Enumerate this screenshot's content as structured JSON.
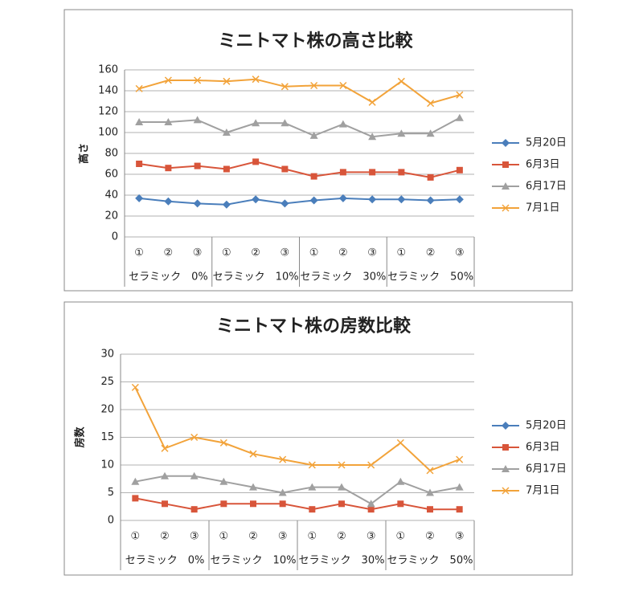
{
  "chart_data": [
    {
      "type": "line",
      "title": "ミニトマト株の高さ比較",
      "y_label": "高さ",
      "categories": [
        "①",
        "②",
        "③",
        "①",
        "②",
        "③",
        "①",
        "②",
        "③",
        "①",
        "②",
        "③"
      ],
      "category_groups": [
        "セラミック　0%",
        "セラミック　10%",
        "セラミック　30%",
        "セラミック　50%"
      ],
      "ylim": [
        0,
        160
      ],
      "yticks": [
        0,
        20,
        40,
        60,
        80,
        100,
        120,
        140,
        160
      ],
      "grid": true,
      "legend": "right",
      "series": [
        {
          "name": "5月20日",
          "color": "#4a7ebb",
          "marker": "diamond",
          "values": [
            37,
            34,
            32,
            31,
            36,
            32,
            35,
            37,
            36,
            36,
            35,
            36
          ]
        },
        {
          "name": "6月3日",
          "color": "#d8553a",
          "marker": "square",
          "values": [
            70,
            66,
            68,
            65,
            72,
            65,
            58,
            62,
            62,
            62,
            57,
            64
          ]
        },
        {
          "name": "6月17日",
          "color": "#a0a0a0",
          "marker": "triangle",
          "values": [
            110,
            110,
            112,
            100,
            109,
            109,
            97,
            108,
            96,
            99,
            99,
            114
          ]
        },
        {
          "name": "7月1日",
          "color": "#f2a33a",
          "marker": "x",
          "values": [
            142,
            150,
            150,
            149,
            151,
            144,
            145,
            145,
            129,
            149,
            128,
            136
          ]
        }
      ]
    },
    {
      "type": "line",
      "title": "ミニトマト株の房数比較",
      "y_label": "房数",
      "categories": [
        "①",
        "②",
        "③",
        "①",
        "②",
        "③",
        "①",
        "②",
        "③",
        "①",
        "②",
        "③"
      ],
      "category_groups": [
        "セラミック　0%",
        "セラミック　10%",
        "セラミック　30%",
        "セラミック　50%"
      ],
      "ylim": [
        0,
        30
      ],
      "yticks": [
        0,
        5,
        10,
        15,
        20,
        25,
        30
      ],
      "grid": true,
      "legend": "right",
      "series": [
        {
          "name": "5月20日",
          "color": "#4a7ebb",
          "marker": "diamond",
          "values": [
            null,
            null,
            null,
            null,
            null,
            null,
            null,
            null,
            null,
            null,
            null,
            null
          ]
        },
        {
          "name": "6月3日",
          "color": "#d8553a",
          "marker": "square",
          "values": [
            4,
            3,
            2,
            3,
            3,
            3,
            2,
            3,
            2,
            3,
            2,
            2
          ]
        },
        {
          "name": "6月17日",
          "color": "#a0a0a0",
          "marker": "triangle",
          "values": [
            7,
            8,
            8,
            7,
            6,
            5,
            6,
            6,
            3,
            7,
            5,
            6
          ]
        },
        {
          "name": "7月1日",
          "color": "#f2a33a",
          "marker": "x",
          "values": [
            24,
            13,
            15,
            14,
            12,
            11,
            10,
            10,
            10,
            14,
            9,
            11
          ]
        }
      ]
    }
  ]
}
